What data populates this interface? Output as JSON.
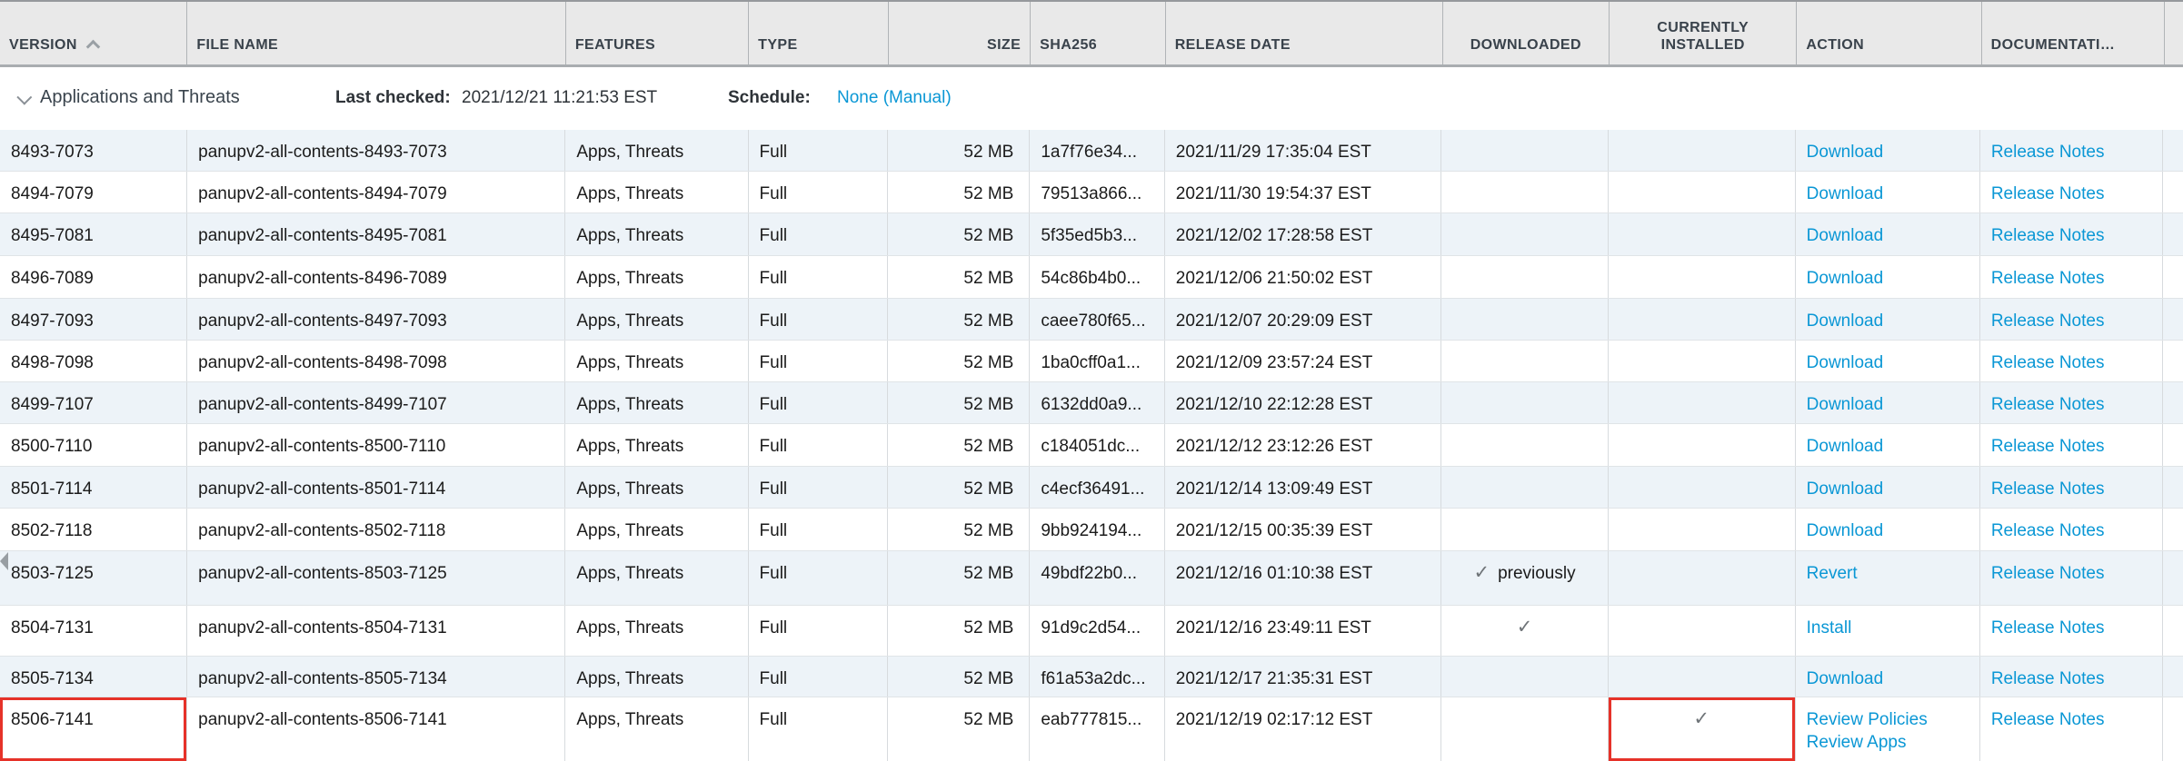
{
  "colors": {
    "link_blue": "#0a97d5",
    "header_bg": "#e9e9e9",
    "alt_row_bg": "#edf3f8",
    "highlight_red": "#e63229",
    "check_gray": "#6f7478"
  },
  "icons": {
    "check": "✓",
    "sort_ascending": "chevron-up",
    "group_expanded": "chevron-down"
  },
  "table": {
    "columns": [
      {
        "key": "version",
        "label": "VERSION",
        "sorted": "ascending"
      },
      {
        "key": "file_name",
        "label": "FILE NAME"
      },
      {
        "key": "features",
        "label": "FEATURES"
      },
      {
        "key": "type",
        "label": "TYPE"
      },
      {
        "key": "size",
        "label": "SIZE"
      },
      {
        "key": "sha256",
        "label": "SHA256"
      },
      {
        "key": "release_date",
        "label": "RELEASE DATE"
      },
      {
        "key": "downloaded",
        "label": "DOWNLOADED"
      },
      {
        "key": "currently_installed",
        "label": "CURRENTLY INSTALLED"
      },
      {
        "key": "action",
        "label": "ACTION"
      },
      {
        "key": "documentation",
        "label": "DOCUMENTATI…"
      }
    ],
    "group": {
      "title": "Applications and Threats",
      "last_checked_label": "Last checked:",
      "last_checked_value": "2021/12/21 11:21:53 EST",
      "schedule_label": "Schedule:",
      "schedule_value": "None (Manual)"
    },
    "labels": {
      "previously": "previously"
    },
    "rows": [
      {
        "version": "8493-7073",
        "file_name": "panupv2-all-contents-8493-7073",
        "features": "Apps, Threats",
        "type": "Full",
        "size": "52 MB",
        "sha256": "1a7f76e34...",
        "release_date": "2021/11/29 17:35:04 EST",
        "downloaded": "",
        "currently_installed": "",
        "actions": [
          "Download"
        ],
        "documentation": "Release Notes"
      },
      {
        "version": "8494-7079",
        "file_name": "panupv2-all-contents-8494-7079",
        "features": "Apps, Threats",
        "type": "Full",
        "size": "52 MB",
        "sha256": "79513a866...",
        "release_date": "2021/11/30 19:54:37 EST",
        "downloaded": "",
        "currently_installed": "",
        "actions": [
          "Download"
        ],
        "documentation": "Release Notes"
      },
      {
        "version": "8495-7081",
        "file_name": "panupv2-all-contents-8495-7081",
        "features": "Apps, Threats",
        "type": "Full",
        "size": "52 MB",
        "sha256": "5f35ed5b3...",
        "release_date": "2021/12/02 17:28:58 EST",
        "downloaded": "",
        "currently_installed": "",
        "actions": [
          "Download"
        ],
        "documentation": "Release Notes"
      },
      {
        "version": "8496-7089",
        "file_name": "panupv2-all-contents-8496-7089",
        "features": "Apps, Threats",
        "type": "Full",
        "size": "52 MB",
        "sha256": "54c86b4b0...",
        "release_date": "2021/12/06 21:50:02 EST",
        "downloaded": "",
        "currently_installed": "",
        "actions": [
          "Download"
        ],
        "documentation": "Release Notes"
      },
      {
        "version": "8497-7093",
        "file_name": "panupv2-all-contents-8497-7093",
        "features": "Apps, Threats",
        "type": "Full",
        "size": "52 MB",
        "sha256": "caee780f65...",
        "release_date": "2021/12/07 20:29:09 EST",
        "downloaded": "",
        "currently_installed": "",
        "actions": [
          "Download"
        ],
        "documentation": "Release Notes"
      },
      {
        "version": "8498-7098",
        "file_name": "panupv2-all-contents-8498-7098",
        "features": "Apps, Threats",
        "type": "Full",
        "size": "52 MB",
        "sha256": "1ba0cff0a1...",
        "release_date": "2021/12/09 23:57:24 EST",
        "downloaded": "",
        "currently_installed": "",
        "actions": [
          "Download"
        ],
        "documentation": "Release Notes"
      },
      {
        "version": "8499-7107",
        "file_name": "panupv2-all-contents-8499-7107",
        "features": "Apps, Threats",
        "type": "Full",
        "size": "52 MB",
        "sha256": "6132dd0a9...",
        "release_date": "2021/12/10 22:12:28 EST",
        "downloaded": "",
        "currently_installed": "",
        "actions": [
          "Download"
        ],
        "documentation": "Release Notes"
      },
      {
        "version": "8500-7110",
        "file_name": "panupv2-all-contents-8500-7110",
        "features": "Apps, Threats",
        "type": "Full",
        "size": "52 MB",
        "sha256": "c184051dc...",
        "release_date": "2021/12/12 23:12:26 EST",
        "downloaded": "",
        "currently_installed": "",
        "actions": [
          "Download"
        ],
        "documentation": "Release Notes"
      },
      {
        "version": "8501-7114",
        "file_name": "panupv2-all-contents-8501-7114",
        "features": "Apps, Threats",
        "type": "Full",
        "size": "52 MB",
        "sha256": "c4ecf36491...",
        "release_date": "2021/12/14 13:09:49 EST",
        "downloaded": "",
        "currently_installed": "",
        "actions": [
          "Download"
        ],
        "documentation": "Release Notes"
      },
      {
        "version": "8502-7118",
        "file_name": "panupv2-all-contents-8502-7118",
        "features": "Apps, Threats",
        "type": "Full",
        "size": "52 MB",
        "sha256": "9bb924194...",
        "release_date": "2021/12/15 00:35:39 EST",
        "downloaded": "",
        "currently_installed": "",
        "actions": [
          "Download"
        ],
        "documentation": "Release Notes"
      },
      {
        "version": "8503-7125",
        "file_name": "panupv2-all-contents-8503-7125",
        "features": "Apps, Threats",
        "type": "Full",
        "size": "52 MB",
        "sha256": "49bdf22b0...",
        "release_date": "2021/12/16 01:10:38 EST",
        "downloaded": "check_previously",
        "currently_installed": "",
        "actions": [
          "Revert"
        ],
        "documentation": "Release Notes"
      },
      {
        "version": "8504-7131",
        "file_name": "panupv2-all-contents-8504-7131",
        "features": "Apps, Threats",
        "type": "Full",
        "size": "52 MB",
        "sha256": "91d9c2d54...",
        "release_date": "2021/12/16 23:49:11 EST",
        "downloaded": "check",
        "currently_installed": "",
        "actions": [
          "Install"
        ],
        "documentation": "Release Notes"
      },
      {
        "version": "8505-7134",
        "file_name": "panupv2-all-contents-8505-7134",
        "features": "Apps, Threats",
        "type": "Full",
        "size": "52 MB",
        "sha256": "f61a53a2dc...",
        "release_date": "2021/12/17 21:35:31 EST",
        "downloaded": "",
        "currently_installed": "",
        "actions": [
          "Download"
        ],
        "documentation": "Release Notes"
      },
      {
        "version": "8506-7141",
        "file_name": "panupv2-all-contents-8506-7141",
        "features": "Apps, Threats",
        "type": "Full",
        "size": "52 MB",
        "sha256": "eab777815...",
        "release_date": "2021/12/19 02:17:12 EST",
        "downloaded": "",
        "currently_installed": "check",
        "actions": [
          "Review Policies",
          "Review Apps"
        ],
        "documentation": "Release Notes",
        "highlight_version": true,
        "highlight_installed": true
      }
    ]
  }
}
